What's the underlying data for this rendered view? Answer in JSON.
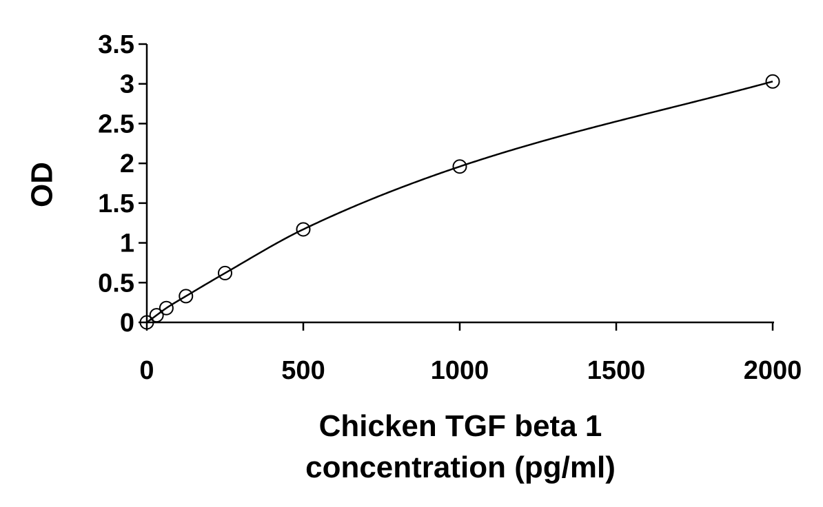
{
  "chart_data": {
    "type": "scatter",
    "title": "",
    "xlabel": "Chicken TGF beta 1 concentration (pg/ml)",
    "xlabel_lines": [
      "Chicken TGF beta 1",
      "concentration (pg/ml)"
    ],
    "ylabel": "OD",
    "xlim": [
      0,
      2000
    ],
    "ylim": [
      0,
      3.5
    ],
    "x_ticks": [
      0,
      500,
      1000,
      1500,
      2000
    ],
    "x_tick_labels": [
      "0",
      "500",
      "1000",
      "1500",
      "2000"
    ],
    "y_ticks": [
      0,
      0.5,
      1,
      1.5,
      2,
      2.5,
      3,
      3.5
    ],
    "y_tick_labels": [
      "0",
      "0.5",
      "1",
      "1.5",
      "2",
      "2.5",
      "3",
      "3.5"
    ],
    "grid": false,
    "legend": "none",
    "series": [
      {
        "marker": "open-circle",
        "line": "smooth-fit",
        "color": "#000000",
        "points": [
          {
            "x": 0,
            "y": 0.0
          },
          {
            "x": 31.25,
            "y": 0.09
          },
          {
            "x": 62.5,
            "y": 0.18
          },
          {
            "x": 125,
            "y": 0.33
          },
          {
            "x": 250,
            "y": 0.62
          },
          {
            "x": 500,
            "y": 1.17
          },
          {
            "x": 1000,
            "y": 1.96
          },
          {
            "x": 2000,
            "y": 3.03
          }
        ]
      }
    ]
  }
}
